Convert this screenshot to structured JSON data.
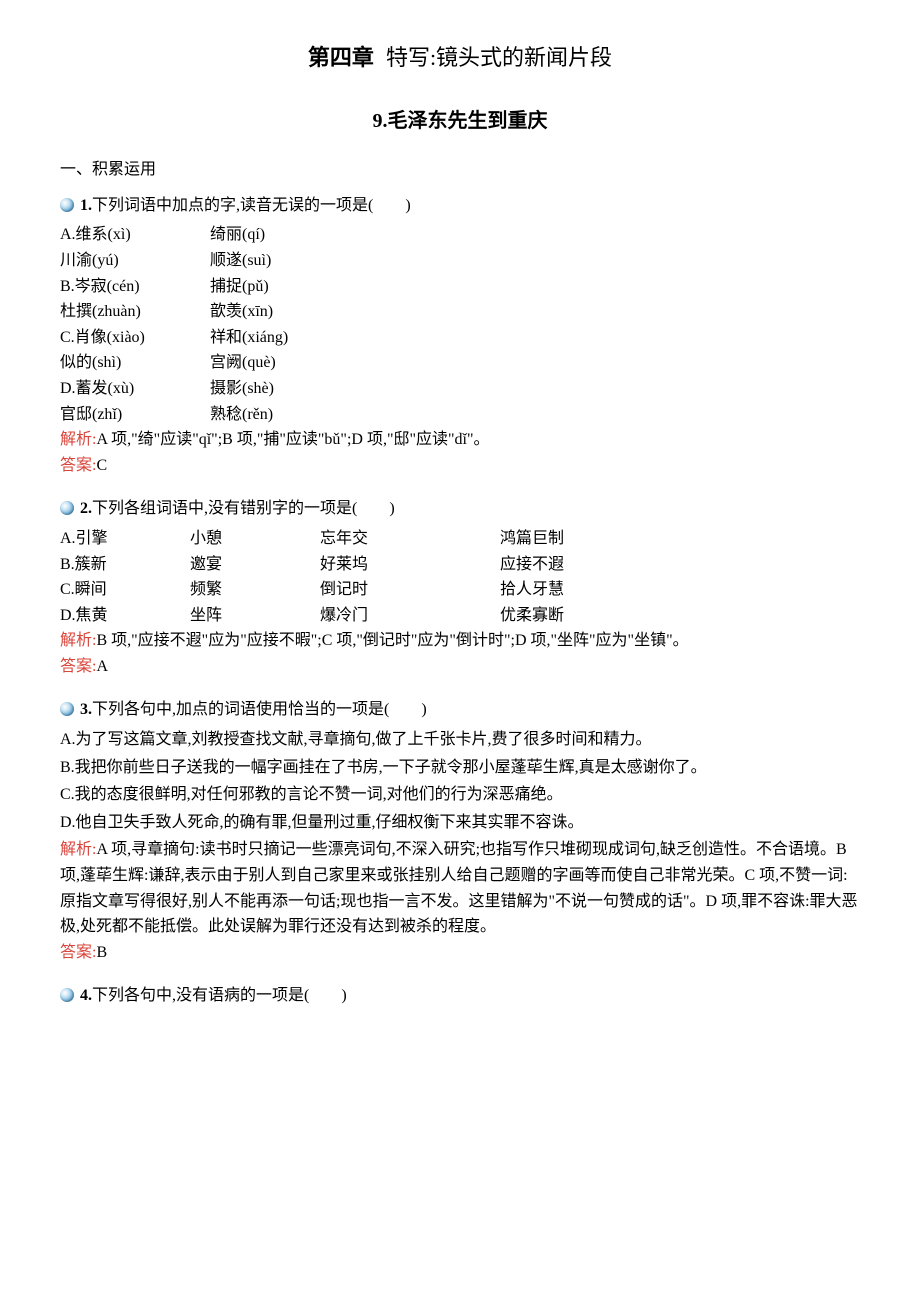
{
  "chapter": {
    "bold": "第四章",
    "rest": "特写:镜头式的新闻片段"
  },
  "lesson": "9.毛泽东先生到重庆",
  "section": "一、积累运用",
  "q1": {
    "num": "1.",
    "text": "下列词语中加点的字,读音无误的一项是(　　)",
    "a1": "A.维系(xì)",
    "a2": "绮丽(qí)",
    "b1": "川渝(yú)",
    "b2": "顺遂(suì)",
    "c1": "B.岑寂(cén)",
    "c2": "捕捉(pǔ)",
    "d1": "杜撰(zhuàn)",
    "d2": "歆羡(xīn)",
    "e1": "C.肖像(xiào)",
    "e2": "祥和(xiáng)",
    "f1": "似的(shì)",
    "f2": "宫阙(què)",
    "g1": "D.蓄发(xù)",
    "g2": "摄影(shè)",
    "h1": "官邸(zhǐ)",
    "h2": "熟稔(rěn)",
    "analysis_label": "解析:",
    "analysis": "A 项,\"绮\"应读\"qǐ\";B 项,\"捕\"应读\"bǔ\";D 项,\"邸\"应读\"dǐ\"。",
    "answer_label": "答案:",
    "answer": "C"
  },
  "q2": {
    "num": "2.",
    "text": "下列各组词语中,没有错别字的一项是(　　)",
    "r1c1": "A.引擎",
    "r1c2": "小憩",
    "r1c3": "忘年交",
    "r1c4": "鸿篇巨制",
    "r2c1": "B.簇新",
    "r2c2": "邀宴",
    "r2c3": "好莱坞",
    "r2c4": "应接不遐",
    "r3c1": "C.瞬间",
    "r3c2": "频繁",
    "r3c3": "倒记时",
    "r3c4": "拾人牙慧",
    "r4c1": "D.焦黄",
    "r4c2": "坐阵",
    "r4c3": "爆冷门",
    "r4c4": "优柔寡断",
    "analysis_label": "解析:",
    "analysis": "B 项,\"应接不遐\"应为\"应接不暇\";C 项,\"倒记时\"应为\"倒计时\";D 项,\"坐阵\"应为\"坐镇\"。",
    "answer_label": "答案:",
    "answer": "A"
  },
  "q3": {
    "num": "3.",
    "text": "下列各句中,加点的词语使用恰当的一项是(　　)",
    "a": "A.为了写这篇文章,刘教授查找文献,寻章摘句,做了上千张卡片,费了很多时间和精力。",
    "b": "B.我把你前些日子送我的一幅字画挂在了书房,一下子就令那小屋蓬荜生辉,真是太感谢你了。",
    "c": "C.我的态度很鲜明,对任何邪教的言论不赞一词,对他们的行为深恶痛绝。",
    "d": "D.他自卫失手致人死命,的确有罪,但量刑过重,仔细权衡下来其实罪不容诛。",
    "analysis_label": "解析:",
    "analysis": "A 项,寻章摘句:读书时只摘记一些漂亮词句,不深入研究;也指写作只堆砌现成词句,缺乏创造性。不合语境。B 项,蓬荜生辉:谦辞,表示由于别人到自己家里来或张挂别人给自己题赠的字画等而使自己非常光荣。C 项,不赞一词:原指文章写得很好,别人不能再添一句话;现也指一言不发。这里错解为\"不说一句赞成的话\"。D 项,罪不容诛:罪大恶极,处死都不能抵偿。此处误解为罪行还没有达到被杀的程度。",
    "answer_label": "答案:",
    "answer": "B"
  },
  "q4": {
    "num": "4.",
    "text": "下列各句中,没有语病的一项是(　　)"
  }
}
